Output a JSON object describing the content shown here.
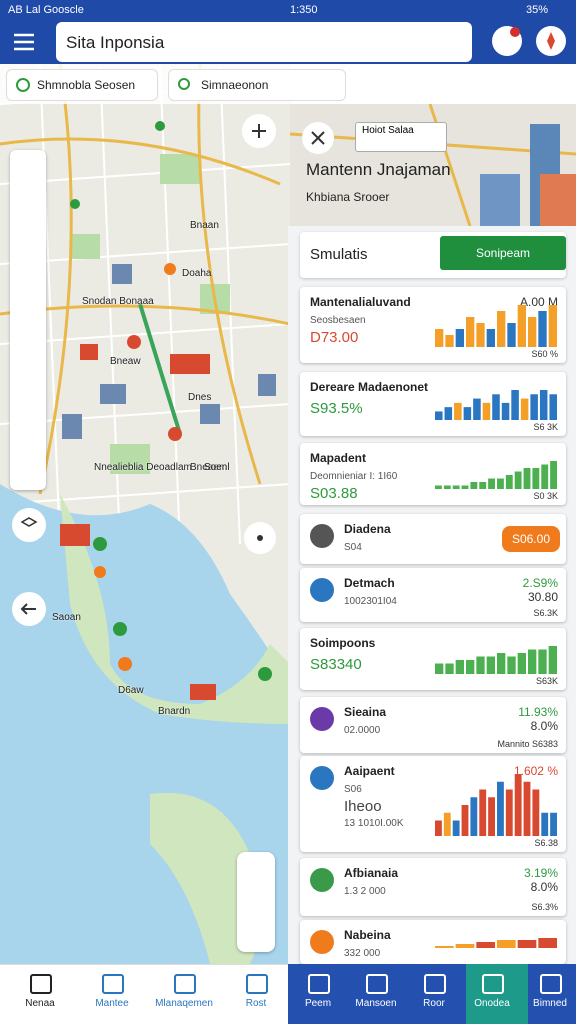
{
  "status_bar": {
    "left": "AB Lal Gooscle",
    "time": "1:350",
    "battery": "35%"
  },
  "search": {
    "title": "Sita Inponsia"
  },
  "filters": {
    "dropdown": "Shmnobla Seosen",
    "search": "Simnaeonon"
  },
  "map_labels": [
    "Doaha",
    "Snodan Bonaaa",
    "Bneaw",
    "Dnes",
    "Bnaan",
    "Bneaem",
    "Soenl",
    "Nnealieblia Deoadlam",
    "Saoan",
    "D6aw",
    "Bnardn"
  ],
  "overlay": {
    "tooltip": "Hoiot Salaa",
    "heading": "Mantenn Jnajaman",
    "sub": "Khbiana Srooer"
  },
  "simulation": {
    "title": "Smulatis",
    "button": "Sonipeam"
  },
  "cards": [
    {
      "name": "Mantenalialuvand",
      "sub": "Seosbesaen",
      "value": "D73.00",
      "value_color": "#d84a2f",
      "right": [
        "A.00 M",
        "S60 %"
      ],
      "bars": [
        3,
        2,
        3,
        5,
        4,
        3,
        6,
        4,
        7,
        5,
        6,
        7
      ],
      "bar_colors": [
        "#f4a028",
        "#f4a028",
        "#2a76c0",
        "#f4a028",
        "#f4a028",
        "#2a76c0",
        "#f4a028",
        "#2a76c0",
        "#f4a028",
        "#f4a028",
        "#2a76c0",
        "#f4a028"
      ]
    },
    {
      "name": "Dereare Madaenonet",
      "value": "S93.5%",
      "value_color": "#2e9a3e",
      "right": [
        "S6 3K"
      ],
      "bars": [
        2,
        3,
        4,
        3,
        5,
        4,
        6,
        4,
        7,
        5,
        6,
        7,
        6
      ],
      "bar_colors": [
        "#2a76c0",
        "#2a76c0",
        "#f4a028",
        "#2a76c0",
        "#2a76c0",
        "#f4a028",
        "#2a76c0",
        "#2a76c0",
        "#2a76c0",
        "#f4a028",
        "#2a76c0",
        "#2a76c0",
        "#2a76c0"
      ]
    },
    {
      "name": "Mapadent",
      "sub": "Deomnieniar I: 1I60",
      "value": "S03.88",
      "value_color": "#2e9a3e",
      "right": [
        "S0 3K"
      ],
      "bars": [
        1,
        1,
        1,
        1,
        2,
        2,
        3,
        3,
        4,
        5,
        6,
        6,
        7,
        8
      ],
      "bar_color": "#4caf50"
    },
    {
      "name": "Diadena",
      "sub": "S04",
      "right": [],
      "badge": "S06.00",
      "icon_color": "#555"
    },
    {
      "name": "Detmach",
      "sub": "1002301I04",
      "right": [
        "2.S9%",
        "30.80",
        "S6.3K"
      ],
      "right_color": "#2e9a3e",
      "icon_color": "#2a76c0"
    },
    {
      "name": "Soimpoons",
      "value": "S83340",
      "value_color": "#2e9a3e",
      "right": [
        "S63K"
      ],
      "bars": [
        3,
        3,
        4,
        4,
        5,
        5,
        6,
        5,
        6,
        7,
        7,
        8
      ],
      "bar_color": "#4caf50"
    },
    {
      "name": "Sieaina",
      "sub": "02.0000",
      "right": [
        "11.93%",
        "8.0%",
        "Mannito S6383"
      ],
      "right_color": "#2e9a3e",
      "icon_color": "#6a3aa8"
    },
    {
      "name": "Aaipaent",
      "sub": "S06",
      "value": "Iheoo",
      "value_color": "#444",
      "extra": "13 1010I.00K",
      "right": [
        "1.602 %",
        "S6.38"
      ],
      "right_color": "#d84a2f",
      "icon_color": "#2a76c0",
      "bars": [
        2,
        3,
        2,
        4,
        5,
        6,
        5,
        7,
        6,
        8,
        7,
        6,
        3,
        3
      ],
      "bar_colors": [
        "#d84a2f",
        "#f4a028",
        "#2a76c0",
        "#d84a2f",
        "#2a76c0",
        "#d84a2f",
        "#d84a2f",
        "#2a76c0",
        "#d84a2f",
        "#d84a2f",
        "#d84a2f",
        "#d84a2f",
        "#2a76c0",
        "#2a76c0"
      ]
    },
    {
      "name": "Afbianaia",
      "sub": "1.3 2 000",
      "right": [
        "3.19%",
        "8.0%",
        "S6.3%"
      ],
      "right_color": "#2e9a3e",
      "icon_color": "#3a9a4a"
    },
    {
      "name": "Nabeina",
      "sub": "332 000",
      "right": [],
      "icon_color": "#f07b1d",
      "bars": [
        1,
        2,
        3,
        4,
        4,
        5
      ],
      "bar_colors": [
        "#f4a028",
        "#f4a028",
        "#d84a2f",
        "#f4a028",
        "#d84a2f",
        "#d84a2f"
      ]
    }
  ],
  "nav_left": [
    "Nenaa",
    "Mantee",
    "Mlanaqemen",
    "Rost"
  ],
  "nav_right": [
    "Peem",
    "Mansoen",
    "Roor",
    "Onodea",
    "Bimned"
  ]
}
